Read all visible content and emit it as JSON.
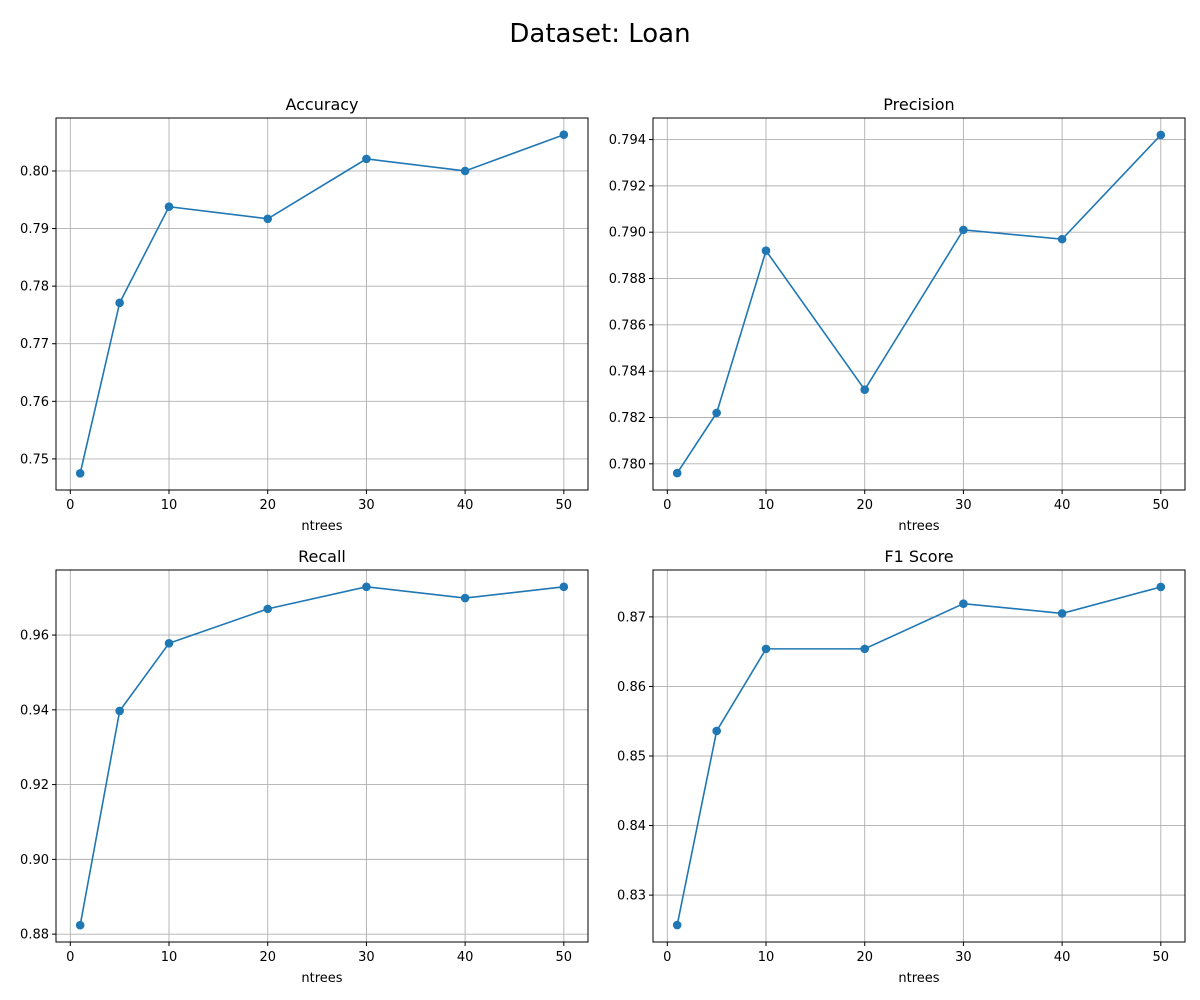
{
  "figure": {
    "suptitle": "Dataset: Loan"
  },
  "chart_data": [
    {
      "type": "line",
      "title": "Accuracy",
      "xlabel": "ntrees",
      "ylabel": "",
      "x": [
        1,
        5,
        10,
        20,
        30,
        40,
        50
      ],
      "series": [
        {
          "values": [
            0.7475,
            0.7771,
            0.7938,
            0.7917,
            0.8021,
            0.8,
            0.8063
          ],
          "color": "#1f77b4",
          "marker": "circle"
        }
      ],
      "xticks": [
        0,
        10,
        20,
        30,
        40,
        50
      ],
      "yticks": [
        0.75,
        0.76,
        0.77,
        0.78,
        0.79,
        0.8
      ],
      "ytick_labels": [
        "0.75",
        "0.76",
        "0.77",
        "0.78",
        "0.79",
        "0.80"
      ],
      "xlim": [
        -1.45,
        52.45
      ],
      "ylim": [
        0.7446,
        0.8092
      ],
      "grid": true
    },
    {
      "type": "line",
      "title": "Precision",
      "xlabel": "ntrees",
      "ylabel": "",
      "x": [
        1,
        5,
        10,
        20,
        30,
        40,
        50
      ],
      "series": [
        {
          "values": [
            0.7796,
            0.7822,
            0.7892,
            0.7832,
            0.7901,
            0.7897,
            0.7942
          ],
          "color": "#1f77b4",
          "marker": "circle"
        }
      ],
      "xticks": [
        0,
        10,
        20,
        30,
        40,
        50
      ],
      "yticks": [
        0.78,
        0.782,
        0.784,
        0.786,
        0.788,
        0.79,
        0.792,
        0.794
      ],
      "ytick_labels": [
        "0.780",
        "0.782",
        "0.784",
        "0.786",
        "0.788",
        "0.790",
        "0.792",
        "0.794"
      ],
      "xlim": [
        -1.45,
        52.45
      ],
      "ylim": [
        0.77887,
        0.79493
      ],
      "grid": true
    },
    {
      "type": "line",
      "title": "Recall",
      "xlabel": "ntrees",
      "ylabel": "",
      "x": [
        1,
        5,
        10,
        20,
        30,
        40,
        50
      ],
      "series": [
        {
          "values": [
            0.8824,
            0.9397,
            0.9578,
            0.967,
            0.9729,
            0.9699,
            0.9729
          ],
          "color": "#1f77b4",
          "marker": "circle"
        }
      ],
      "xticks": [
        0,
        10,
        20,
        30,
        40,
        50
      ],
      "yticks": [
        0.88,
        0.9,
        0.92,
        0.94,
        0.96
      ],
      "ytick_labels": [
        "0.88",
        "0.90",
        "0.92",
        "0.94",
        "0.96"
      ],
      "xlim": [
        -1.45,
        52.45
      ],
      "ylim": [
        0.8779,
        0.9774
      ],
      "grid": true
    },
    {
      "type": "line",
      "title": "F1 Score",
      "xlabel": "ntrees",
      "ylabel": "",
      "x": [
        1,
        5,
        10,
        20,
        30,
        40,
        50
      ],
      "series": [
        {
          "values": [
            0.8257,
            0.8536,
            0.8654,
            0.8654,
            0.8719,
            0.8705,
            0.8743
          ],
          "color": "#1f77b4",
          "marker": "circle"
        }
      ],
      "xticks": [
        0,
        10,
        20,
        30,
        40,
        50
      ],
      "yticks": [
        0.83,
        0.84,
        0.85,
        0.86,
        0.87
      ],
      "ytick_labels": [
        "0.83",
        "0.84",
        "0.85",
        "0.86",
        "0.87"
      ],
      "xlim": [
        -1.45,
        52.45
      ],
      "ylim": [
        0.82326,
        0.87674
      ],
      "grid": true
    }
  ]
}
